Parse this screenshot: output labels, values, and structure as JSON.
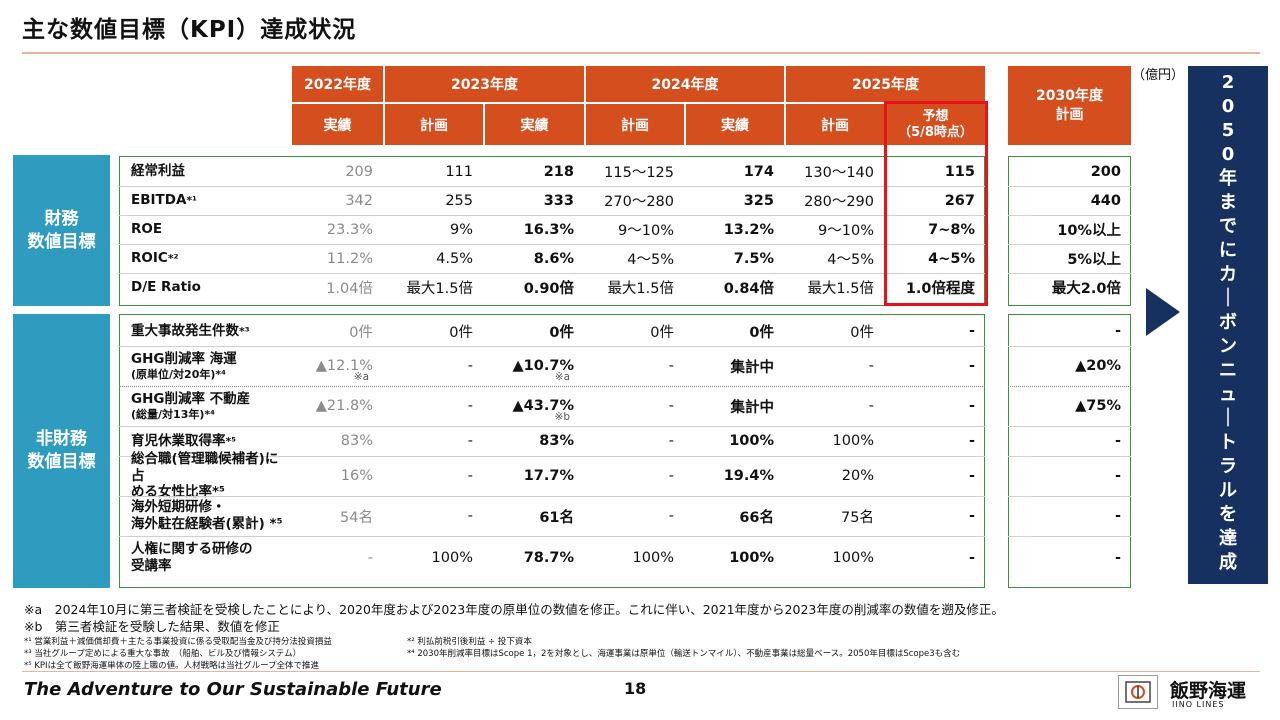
{
  "title": "主な数値目標（KPI）達成状況",
  "unit": "（億円）",
  "header": {
    "years": [
      "2022年度",
      "2023年度",
      "2024年度",
      "2025年度"
    ],
    "y2030": "2030年度",
    "y2030_sub": "計画",
    "cols": [
      "実績",
      "計画",
      "実績",
      "計画",
      "実績",
      "計画",
      "予想",
      "（5/8時点）"
    ]
  },
  "sections": {
    "financial": "財務\n数値目標",
    "nonfinancial": "非財務\n数値目標"
  },
  "financial_rows": [
    {
      "label": "経常利益",
      "sup": "",
      "v": [
        "209",
        "111",
        "218",
        "115～125",
        "174",
        "130～140",
        "115",
        "200"
      ]
    },
    {
      "label": "EBITDA",
      "sup": "*¹",
      "v": [
        "342",
        "255",
        "333",
        "270～280",
        "325",
        "280～290",
        "267",
        "440"
      ]
    },
    {
      "label": "ROE",
      "sup": "",
      "v": [
        "23.3%",
        "9%",
        "16.3%",
        "9～10%",
        "13.2%",
        "9～10%",
        "7~8%",
        "10%以上"
      ]
    },
    {
      "label": "ROIC",
      "sup": "*²",
      "v": [
        "11.2%",
        "4.5%",
        "8.6%",
        "4～5%",
        "7.5%",
        "4～5%",
        "4~5%",
        "5%以上"
      ]
    },
    {
      "label": "D/E Ratio",
      "sup": "",
      "v": [
        "1.04倍",
        "最大1.5倍",
        "0.90倍",
        "最大1.5倍",
        "0.84倍",
        "最大1.5倍",
        "1.0倍程度",
        "最大2.0倍"
      ]
    }
  ],
  "nonfinancial_rows": [
    {
      "label": "重大事故発生件数",
      "sup": "*³",
      "v": [
        "0件",
        "0件",
        "0件",
        "0件",
        "0件",
        "0件",
        "-",
        "-"
      ]
    },
    {
      "label": "GHG削減率 海運",
      "label2": "(原単位/対20年)*⁴",
      "v": [
        "▲12.1%",
        "-",
        "▲10.7%",
        "-",
        "集計中",
        "-",
        "-",
        "▲20%"
      ],
      "note0": "※a",
      "note2": "※a"
    },
    {
      "label": "GHG削減率 不動産",
      "label2": "(総量/対13年)*⁴",
      "v": [
        "▲21.8%",
        "-",
        "▲43.7%",
        "-",
        "集計中",
        "-",
        "-",
        "▲75%"
      ],
      "note2": "※b"
    },
    {
      "label": "育児休業取得率",
      "sup": "*⁵",
      "v": [
        "83%",
        "-",
        "83%",
        "-",
        "100%",
        "100%",
        "-",
        "-"
      ]
    },
    {
      "label": "総合職(管理職候補者)に占",
      "label2": "める女性比率*⁵",
      "v": [
        "16%",
        "-",
        "17.7%",
        "-",
        "19.4%",
        "20%",
        "-",
        "-"
      ]
    },
    {
      "label": "海外短期研修・",
      "label2": "海外駐在経験者(累計) *⁵",
      "v": [
        "54名",
        "-",
        "61名",
        "-",
        "66名",
        "75名",
        "-",
        "-"
      ]
    },
    {
      "label": "人権に関する研修の",
      "label2": "受講率",
      "v": [
        "-",
        "100%",
        "78.7%",
        "100%",
        "100%",
        "100%",
        "-",
        "-"
      ]
    }
  ],
  "banner": [
    "2",
    "0",
    "5",
    "0",
    "年",
    "ま",
    "で",
    "に",
    "カ",
    "｜",
    "ボ",
    "ン",
    "ニ",
    "ュ",
    "｜",
    "ト",
    "ラ",
    "ル",
    "を",
    "達",
    "成"
  ],
  "notes": {
    "a": "※a　2024年10月に第三者検証を受検したことにより、2020年度および2023年度の原単位の数値を修正。これに伴い、2021年度から2023年度の削減率の数値を遡及修正。",
    "b": "※b　第三者検証を受験した結果、数値を修正"
  },
  "footnotes": {
    "f1": "*¹ 営業利益＋減価償却費＋主たる事業投資に係る受取配当金及び持分法投資損益",
    "f2": "*² 利払前税引後利益 ÷ 投下資本",
    "f3": "*³ 当社グループ定めによる重大な事故　（船舶、ビル及び情報システム）",
    "f4": "*⁴ 2030年削減率目標はScope 1，2を対象とし、海運事業は原単位（輸送トンマイル）、不動産事業は総量ベース。2050年目標はScope3も含む",
    "f5": "*⁵ KPIは全て飯野海運単体の陸上職の値。人材戦略は当社グループ全体で推進"
  },
  "footer": {
    "slogan": "The Adventure to Our Sustainable Future",
    "page": "18",
    "company": "飯野海運",
    "company_en": "IINO LINES"
  },
  "colors": {
    "header": "#d54f1e",
    "sidebar": "#2f9bbf",
    "banner": "#16315f",
    "highlight": "#e6141a",
    "border": "#3f8f41"
  }
}
